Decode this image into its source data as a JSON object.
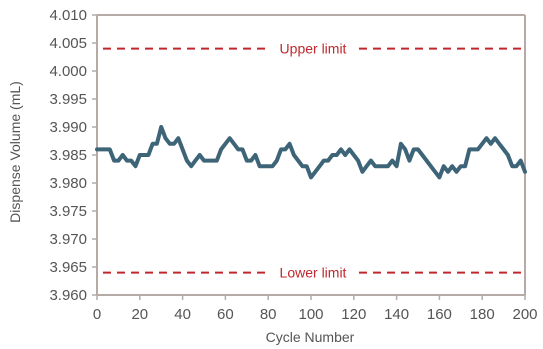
{
  "chart_data": {
    "type": "line",
    "title": "",
    "xlabel": "Cycle Number",
    "ylabel": "Dispense Volume (mL)",
    "xlim": [
      0,
      200
    ],
    "ylim": [
      3.96,
      4.01
    ],
    "xticks": [
      "0",
      "20",
      "40",
      "60",
      "80",
      "100",
      "120",
      "140",
      "160",
      "180",
      "200"
    ],
    "yticks": [
      "3.960",
      "3.965",
      "3.970",
      "3.975",
      "3.980",
      "3.985",
      "3.990",
      "3.995",
      "4.000",
      "4.005",
      "4.010"
    ],
    "grid": false,
    "colors": {
      "series": "#3e6478",
      "limits": "#c0282d",
      "axes": "#b5aaa5"
    },
    "limits": [
      {
        "label": "Upper limit",
        "value": 4.004
      },
      {
        "label": "Lower limit",
        "value": 3.964
      }
    ],
    "series": [
      {
        "x": [
          0,
          2,
          4,
          6,
          8,
          10,
          12,
          14,
          16,
          18,
          20,
          22,
          24,
          26,
          28,
          30,
          32,
          34,
          36,
          38,
          40,
          42,
          44,
          46,
          48,
          50,
          52,
          54,
          56,
          58,
          60,
          62,
          64,
          66,
          68,
          70,
          72,
          74,
          76,
          78,
          80,
          82,
          84,
          86,
          88,
          90,
          92,
          94,
          96,
          98,
          100,
          102,
          104,
          106,
          108,
          110,
          112,
          114,
          116,
          118,
          120,
          122,
          124,
          126,
          128,
          130,
          132,
          134,
          136,
          138,
          140,
          142,
          144,
          146,
          148,
          150,
          152,
          154,
          156,
          158,
          160,
          162,
          164,
          166,
          168,
          170,
          172,
          174,
          176,
          178,
          180,
          182,
          184,
          186,
          188,
          190,
          192,
          194,
          196,
          198,
          200
        ],
        "values": [
          3.986,
          3.986,
          3.986,
          3.986,
          3.984,
          3.984,
          3.985,
          3.984,
          3.984,
          3.983,
          3.985,
          3.985,
          3.985,
          3.987,
          3.987,
          3.99,
          3.988,
          3.987,
          3.987,
          3.988,
          3.986,
          3.984,
          3.983,
          3.984,
          3.985,
          3.984,
          3.984,
          3.984,
          3.984,
          3.986,
          3.987,
          3.988,
          3.987,
          3.986,
          3.986,
          3.984,
          3.984,
          3.985,
          3.983,
          3.983,
          3.983,
          3.983,
          3.984,
          3.986,
          3.986,
          3.987,
          3.985,
          3.984,
          3.983,
          3.983,
          3.981,
          3.982,
          3.983,
          3.984,
          3.984,
          3.985,
          3.985,
          3.986,
          3.985,
          3.986,
          3.985,
          3.984,
          3.982,
          3.983,
          3.984,
          3.983,
          3.983,
          3.983,
          3.983,
          3.984,
          3.983,
          3.987,
          3.986,
          3.984,
          3.986,
          3.986,
          3.985,
          3.984,
          3.983,
          3.982,
          3.981,
          3.983,
          3.982,
          3.983,
          3.982,
          3.983,
          3.983,
          3.986,
          3.986,
          3.986,
          3.987,
          3.988,
          3.987,
          3.988,
          3.987,
          3.986,
          3.985,
          3.983,
          3.983,
          3.984,
          3.982
        ]
      }
    ]
  }
}
